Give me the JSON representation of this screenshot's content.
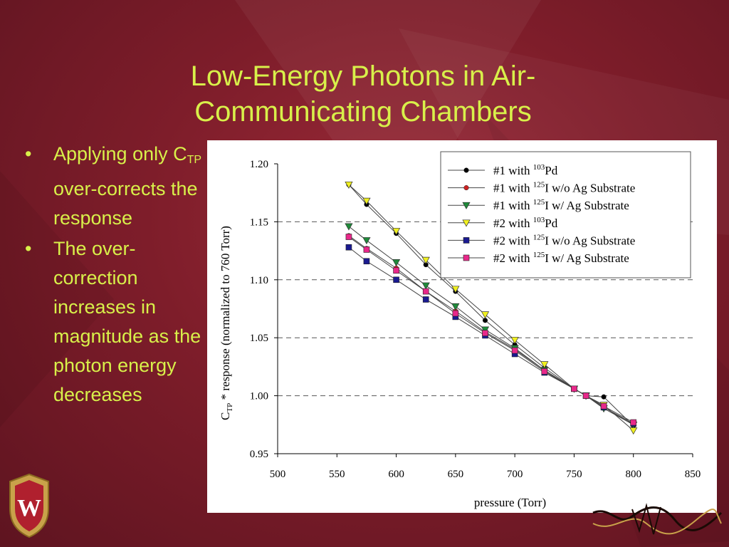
{
  "slide": {
    "title_line1": "Low-Energy Photons in Air-",
    "title_line2": "Communicating Chambers",
    "bullet1_a": "Applying only C",
    "bullet1_sub": "TP",
    "bullet1_b": " over-corrects the response",
    "bullet2": "The over-correction increases in magnitude as the photon energy decreases"
  },
  "colors": {
    "background": "#7e1d2a",
    "title": "#d8f04a",
    "bullet_text": "#d8f04a"
  },
  "chart_data": {
    "type": "line",
    "xlabel": "pressure (Torr)",
    "ylabel": "C_TP * response (normalized to 760 Torr)",
    "ylabel_main": "C",
    "ylabel_sub": "TP",
    "ylabel_rest": " * response (normalized to 760 Torr)",
    "xlim": [
      500,
      850
    ],
    "ylim": [
      0.95,
      1.2
    ],
    "x_ticks": [
      "500",
      "550",
      "600",
      "650",
      "700",
      "750",
      "800",
      "850"
    ],
    "y_ticks": [
      "0.95",
      "1.00",
      "1.05",
      "1.10",
      "1.15",
      "1.20"
    ],
    "grid": "horizontal dashed",
    "legend_position": "top-right",
    "series": [
      {
        "name": "#1 with 103Pd",
        "label_prefix": "#1 with ",
        "isotope_mass": "103",
        "label_suffix": "Pd",
        "marker": "circle",
        "color": "#000000",
        "x": [
          560,
          575,
          600,
          625,
          650,
          675,
          700,
          725,
          750,
          760,
          775,
          800
        ],
        "y": [
          1.182,
          1.165,
          1.14,
          1.113,
          1.09,
          1.065,
          1.044,
          1.024,
          1.006,
          1.0,
          0.999,
          0.974
        ]
      },
      {
        "name": "#1 with 125I w/o Ag Substrate",
        "label_prefix": "#1 with ",
        "isotope_mass": "125",
        "label_suffix": "I  w/o Ag Substrate",
        "marker": "circle",
        "color": "#cc2222",
        "x": [
          560,
          575,
          600,
          625,
          650,
          675,
          700,
          725,
          750,
          760,
          775,
          800
        ],
        "y": [
          1.138,
          1.127,
          1.11,
          1.09,
          1.073,
          1.055,
          1.04,
          1.022,
          1.006,
          1.0,
          0.99,
          0.975
        ]
      },
      {
        "name": "#1 with 125I w/ Ag Substrate",
        "label_prefix": "#1 with ",
        "isotope_mass": "125",
        "label_suffix": "I  w/ Ag Substrate",
        "marker": "triangle-down",
        "color": "#1f8a3a",
        "x": [
          560,
          575,
          600,
          625,
          650,
          675,
          700,
          725,
          750,
          760,
          775,
          800
        ],
        "y": [
          1.146,
          1.134,
          1.115,
          1.095,
          1.077,
          1.057,
          1.041,
          1.022,
          1.006,
          1.0,
          0.989,
          0.975
        ]
      },
      {
        "name": "#2 with 103Pd",
        "label_prefix": "#2 with ",
        "isotope_mass": "103",
        "label_suffix": "Pd",
        "marker": "triangle-down",
        "color": "#f0f020",
        "x": [
          560,
          575,
          600,
          625,
          650,
          675,
          700,
          725,
          750,
          760,
          775,
          800
        ],
        "y": [
          1.182,
          1.168,
          1.142,
          1.117,
          1.092,
          1.07,
          1.048,
          1.027,
          1.006,
          1.0,
          0.992,
          0.97
        ]
      },
      {
        "name": "#2 with 125I w/o Ag Substrate",
        "label_prefix": "#2 with ",
        "isotope_mass": "125",
        "label_suffix": "I  w/o Ag Substrate",
        "marker": "square",
        "color": "#1a1a90",
        "x": [
          560,
          575,
          600,
          625,
          650,
          675,
          700,
          725,
          750,
          760,
          775,
          800
        ],
        "y": [
          1.128,
          1.116,
          1.1,
          1.083,
          1.068,
          1.052,
          1.036,
          1.02,
          1.006,
          1.0,
          0.99,
          0.976
        ]
      },
      {
        "name": "#2 with 125I w/ Ag Substrate",
        "label_prefix": "#2 with ",
        "isotope_mass": "125",
        "label_suffix": "I  w/ Ag Substrate",
        "marker": "square",
        "color": "#e8288a",
        "x": [
          560,
          575,
          600,
          625,
          650,
          675,
          700,
          725,
          750,
          760,
          775,
          800
        ],
        "y": [
          1.137,
          1.126,
          1.108,
          1.09,
          1.071,
          1.054,
          1.039,
          1.021,
          1.006,
          1.0,
          0.991,
          0.977
        ]
      }
    ]
  }
}
